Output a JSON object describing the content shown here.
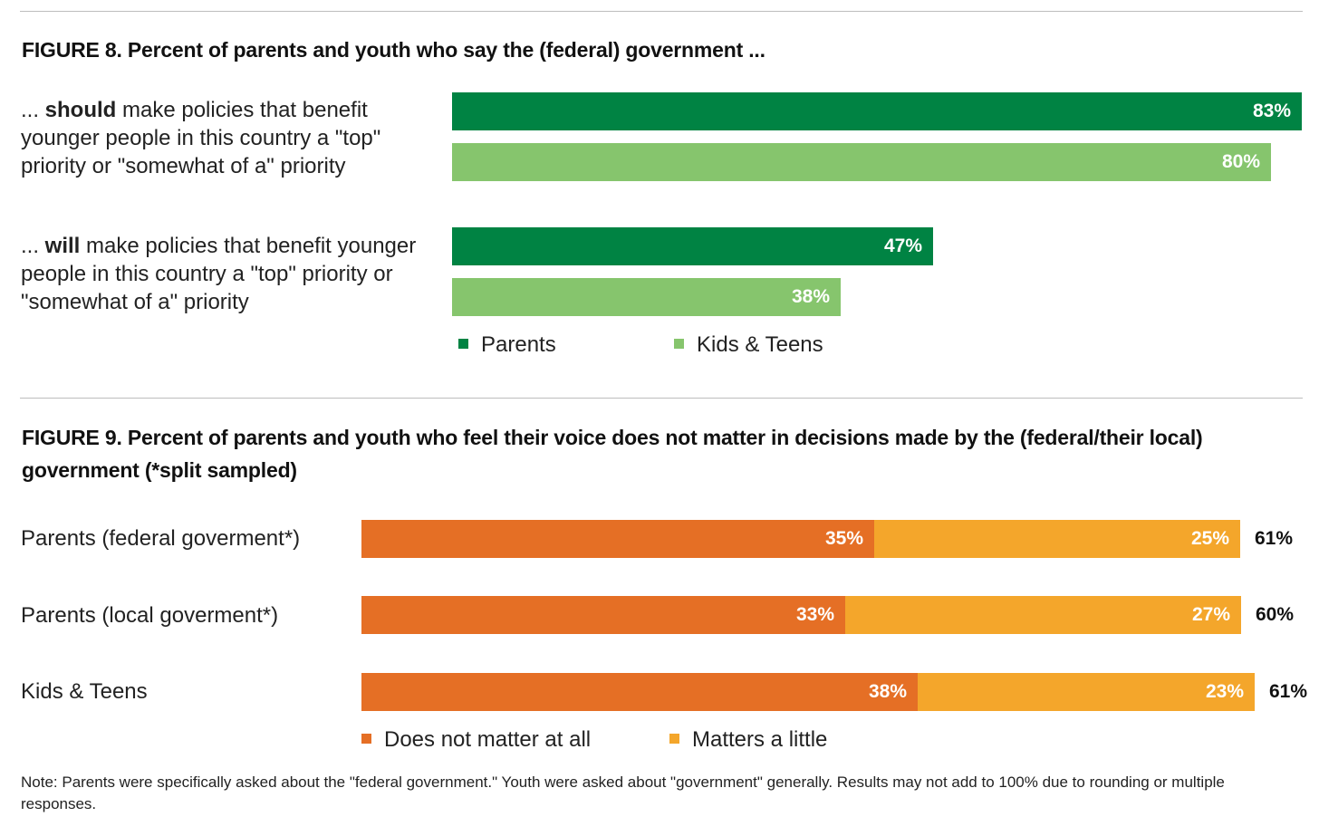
{
  "figure8": {
    "title": "FIGURE 8. Percent of parents and youth who say the (federal) government ...",
    "chart_data": {
      "type": "bar",
      "orientation": "horizontal",
      "categories": [
        {
          "prefix": "... ",
          "emphasis": "should",
          "rest": " make policies that benefit younger people in this country a \"top\" priority or \"somewhat of a\" priority"
        },
        {
          "prefix": "... ",
          "emphasis": "will",
          "rest": " make policies that benefit younger people in this country a \"top\" priority or \"somewhat of a\" priority"
        }
      ],
      "series": [
        {
          "name": "Parents",
          "color": "#008343",
          "values": [
            83,
            47
          ],
          "labels": [
            "83%",
            "47%"
          ]
        },
        {
          "name": "Kids & Teens",
          "color": "#86c56d",
          "values": [
            80,
            38
          ],
          "labels": [
            "80%",
            "38%"
          ]
        }
      ],
      "xlim": [
        0,
        83
      ]
    }
  },
  "figure9": {
    "title": "FIGURE 9. Percent of parents and youth who feel their voice does not matter in decisions made by the (federal/their local) government (*split sampled)",
    "chart_data": {
      "type": "bar",
      "orientation": "horizontal",
      "stacked": true,
      "categories": [
        "Parents (federal goverment*)",
        "Parents (local goverment*)",
        "Kids & Teens"
      ],
      "series": [
        {
          "name": "Does not matter at all",
          "color": "#e56f25",
          "values": [
            35,
            33,
            38
          ],
          "labels": [
            "35%",
            "33%",
            "38%"
          ]
        },
        {
          "name": "Matters a little",
          "color": "#f4a62b",
          "values": [
            25,
            27,
            23
          ],
          "labels": [
            "25%",
            "27%",
            "23%"
          ]
        }
      ],
      "totals": [
        "61%",
        "60%",
        "61%"
      ],
      "xlim": [
        0,
        59
      ]
    }
  },
  "note": "Note: Parents were specifically asked about the \"federal government.\" Youth were asked about \"government\" generally. Results may not add to 100% due to rounding or multiple responses."
}
